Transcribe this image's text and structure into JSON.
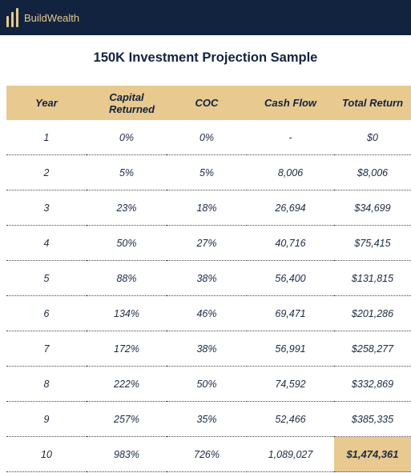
{
  "header": {
    "brand": "BuildWealth"
  },
  "page": {
    "title": "150K Investment Projection Sample"
  },
  "table": {
    "columns": [
      "Year",
      "Capital Returned",
      "COC",
      "Cash Flow",
      "Total Return"
    ],
    "rows": [
      [
        "1",
        "0%",
        "0%",
        "-",
        "$0"
      ],
      [
        "2",
        "5%",
        "5%",
        "8,006",
        "$8,006"
      ],
      [
        "3",
        "23%",
        "18%",
        "26,694",
        "$34,699"
      ],
      [
        "4",
        "50%",
        "27%",
        "40,716",
        "$75,415"
      ],
      [
        "5",
        "88%",
        "38%",
        "56,400",
        "$131,815"
      ],
      [
        "6",
        "134%",
        "46%",
        "69,471",
        "$201,286"
      ],
      [
        "7",
        "172%",
        "38%",
        "56,991",
        "$258,277"
      ],
      [
        "8",
        "222%",
        "50%",
        "74,592",
        "$332,869"
      ],
      [
        "9",
        "257%",
        "35%",
        "52,466",
        "$385,335"
      ],
      [
        "10",
        "983%",
        "726%",
        "1,089,027",
        "$1,474,361"
      ]
    ]
  },
  "colors": {
    "navy": "#12233f",
    "gold": "#e8c98f"
  }
}
